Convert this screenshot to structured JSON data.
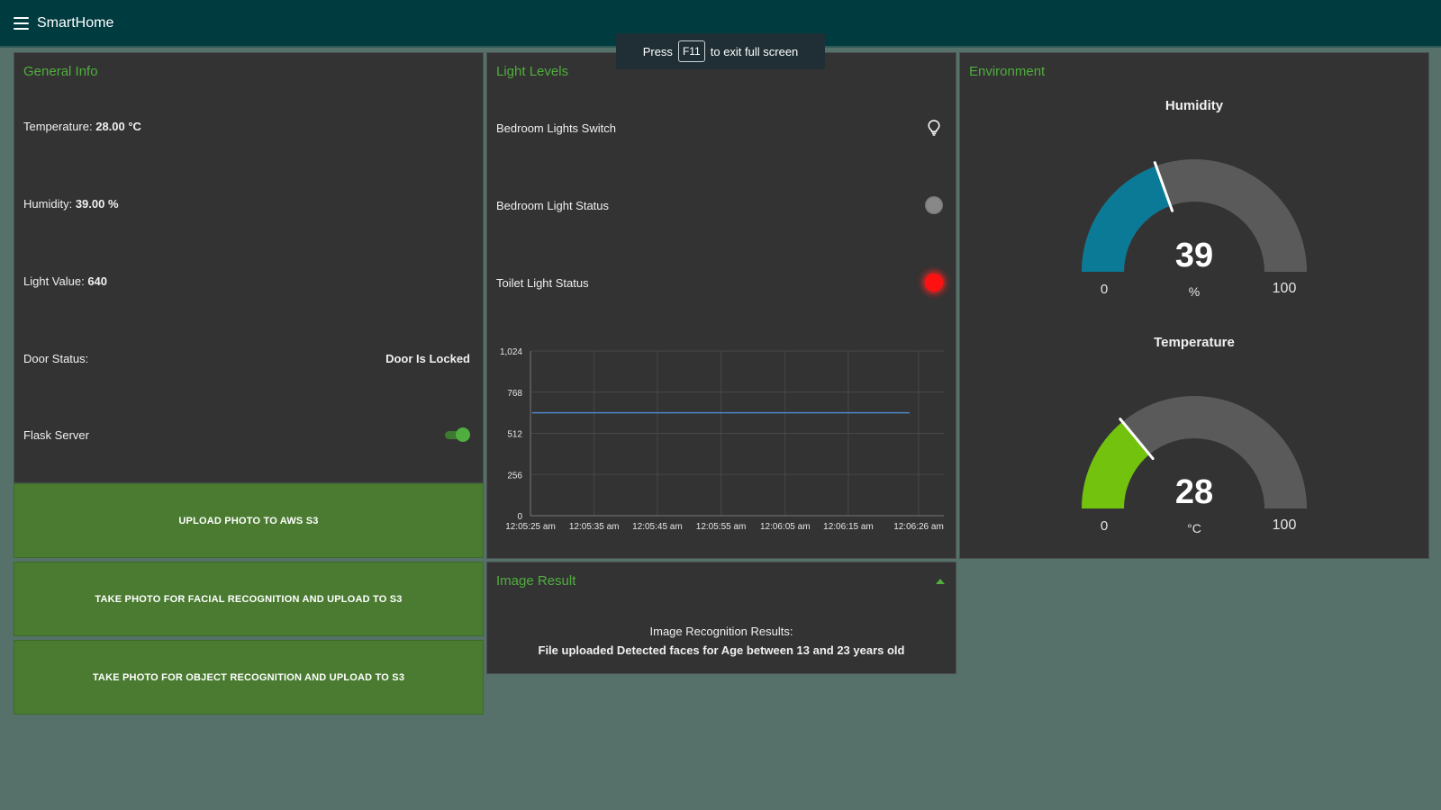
{
  "app": {
    "title": "SmartHome"
  },
  "fullscreen_toast": {
    "prefix": "Press",
    "key": "F11",
    "suffix": "to exit full screen"
  },
  "general_info": {
    "title": "General Info",
    "temperature": {
      "label": "Temperature:",
      "value": "28.00 °C"
    },
    "humidity": {
      "label": "Humidity:",
      "value": "39.00 %"
    },
    "light_value": {
      "label": "Light Value:",
      "value": "640"
    },
    "door_status": {
      "label": "Door Status:",
      "value": "Door Is Locked"
    },
    "flask_server": {
      "label": "Flask Server",
      "on": true
    }
  },
  "buttons": {
    "upload_photo": "UPLOAD PHOTO TO AWS S3",
    "facial_recognition": "TAKE PHOTO FOR FACIAL RECOGNITION AND UPLOAD TO S3",
    "object_recognition": "TAKE PHOTO FOR OBJECT RECOGNITION AND UPLOAD TO S3"
  },
  "light_levels": {
    "title": "Light Levels",
    "bedroom_switch": {
      "label": "Bedroom Lights Switch"
    },
    "bedroom_status": {
      "label": "Bedroom Light Status",
      "color": "#888888"
    },
    "toilet_status": {
      "label": "Toilet Light Status",
      "color": "#ff1111"
    }
  },
  "chart_data": {
    "type": "line",
    "x": [
      "12:05:25 am",
      "12:05:35 am",
      "12:05:45 am",
      "12:05:55 am",
      "12:06:05 am",
      "12:06:15 am",
      "12:06:26 am"
    ],
    "series": [
      {
        "values": [
          640,
          640,
          640,
          640,
          640,
          640,
          640
        ],
        "color": "#4d86c6"
      }
    ],
    "ylim": [
      0,
      1024
    ],
    "yticks": [
      "1,024",
      "768",
      "512",
      "256",
      "0"
    ],
    "ytick_values": [
      1024,
      768,
      512,
      256,
      0
    ],
    "grid": true
  },
  "image_result": {
    "title": "Image Result",
    "heading": "Image Recognition Results:",
    "result": "File uploaded Detected faces for Age between 13 and 23 years old"
  },
  "environment": {
    "title": "Environment",
    "humidity_gauge": {
      "title": "Humidity",
      "value": 39,
      "min": 0,
      "max": 100,
      "unit": "%",
      "color": "#0b7a96",
      "min_label": "0",
      "max_label": "100",
      "value_label": "39"
    },
    "temperature_gauge": {
      "title": "Temperature",
      "value": 28,
      "min": 0,
      "max": 100,
      "unit": "°C",
      "color": "#72c20e",
      "min_label": "0",
      "max_label": "100",
      "value_label": "28"
    }
  }
}
